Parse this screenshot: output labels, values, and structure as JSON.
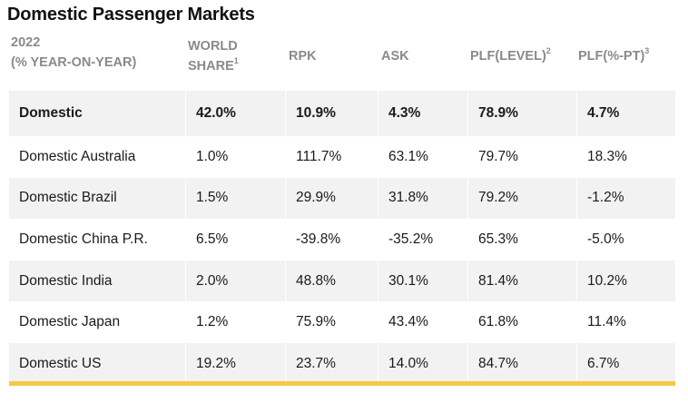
{
  "title": "Domestic Passenger Markets",
  "header": {
    "col0_line1": "2022",
    "col0_line2": "(% YEAR-ON-YEAR)",
    "col1_line1": "WORLD",
    "col1_line2": "SHARE",
    "col1_sup": "1",
    "col2": "RPK",
    "col3": "ASK",
    "col4": "PLF(LEVEL)",
    "col4_sup": "2",
    "col5": "PLF(%-PT)",
    "col5_sup": "3"
  },
  "rows": [
    {
      "market": "Domestic",
      "world_share": "42.0%",
      "rpk": "10.9%",
      "ask": "4.3%",
      "plf_level": "78.9%",
      "plf_pt": "4.7%"
    },
    {
      "market": "Domestic Australia",
      "world_share": "1.0%",
      "rpk": "111.7%",
      "ask": "63.1%",
      "plf_level": "79.7%",
      "plf_pt": "18.3%"
    },
    {
      "market": "Domestic Brazil",
      "world_share": "1.5%",
      "rpk": "29.9%",
      "ask": "31.8%",
      "plf_level": "79.2%",
      "plf_pt": "-1.2%"
    },
    {
      "market": "Domestic China P.R.",
      "world_share": "6.5%",
      "rpk": "-39.8%",
      "ask": "-35.2%",
      "plf_level": "65.3%",
      "plf_pt": "-5.0%"
    },
    {
      "market": "Domestic India",
      "world_share": "2.0%",
      "rpk": "48.8%",
      "ask": "30.1%",
      "plf_level": "81.4%",
      "plf_pt": "10.2%"
    },
    {
      "market": "Domestic Japan",
      "world_share": "1.2%",
      "rpk": "75.9%",
      "ask": "43.4%",
      "plf_level": "61.8%",
      "plf_pt": "11.4%"
    },
    {
      "market": "Domestic US",
      "world_share": "19.2%",
      "rpk": "23.7%",
      "ask": "14.0%",
      "plf_level": "84.7%",
      "plf_pt": "6.7%"
    }
  ],
  "colors": {
    "header_text": "#8a8a8a",
    "row_shade": "#f2f2f2",
    "accent_bar": "#f6c843"
  }
}
